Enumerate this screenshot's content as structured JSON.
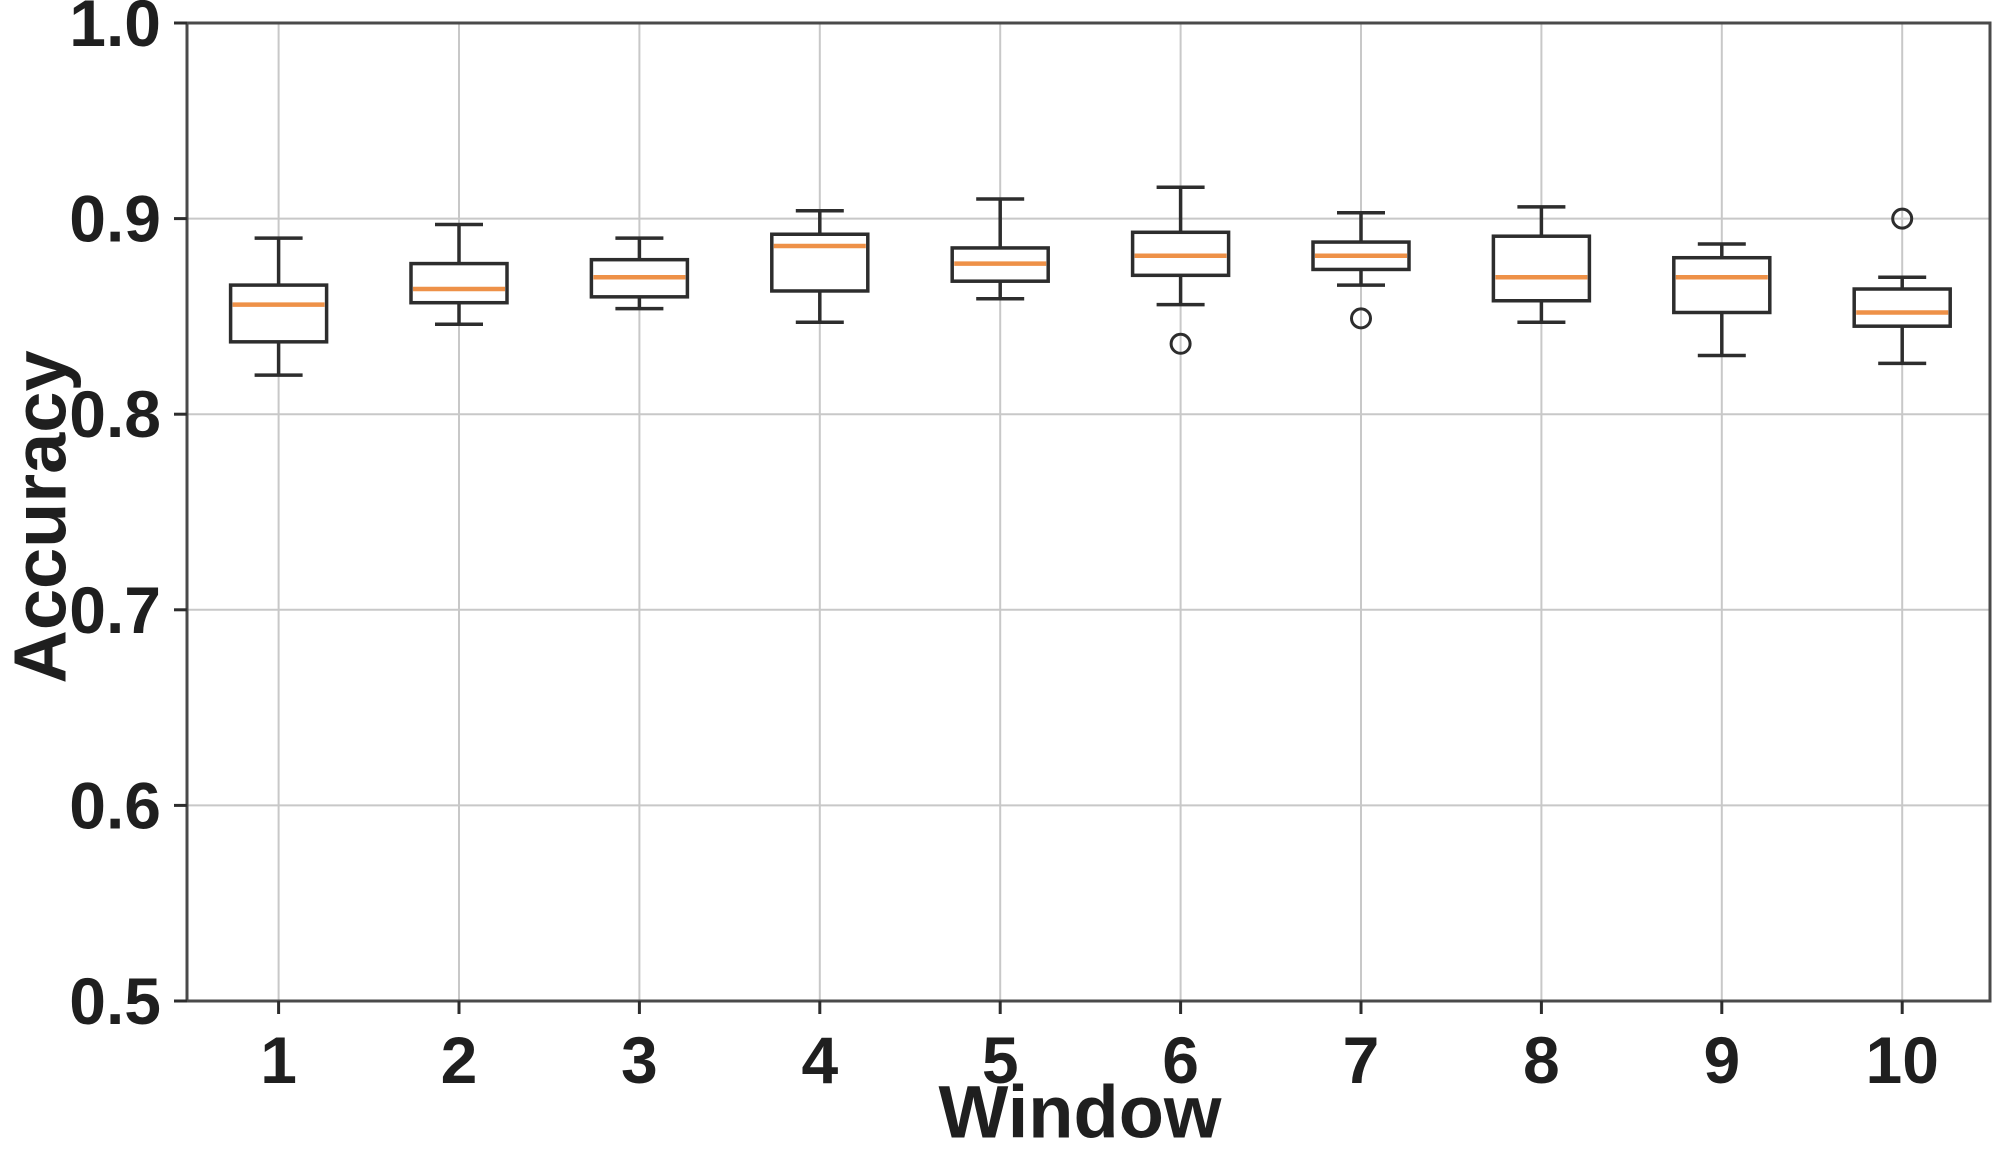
{
  "chart_data": {
    "type": "boxplot",
    "title": "",
    "xlabel": "Window",
    "ylabel": "Accuracy",
    "x_categories": [
      "1",
      "2",
      "3",
      "4",
      "5",
      "6",
      "7",
      "8",
      "9",
      "10"
    ],
    "y_ticks": [
      "0.5",
      "0.6",
      "0.7",
      "0.8",
      "0.9",
      "1.0"
    ],
    "ylim": [
      0.5,
      1.0
    ],
    "grid": true,
    "legend": "none",
    "colors": {
      "median": "#ee9148",
      "box": "#2d2d2d",
      "tick": "#2d2d2d",
      "grid": "#c8c8c8",
      "spine": "#4a4a4a",
      "text": "#1f1f1f",
      "background": "#ffffff"
    },
    "boxes": [
      {
        "window": "1",
        "whislo": 0.82,
        "q1": 0.837,
        "med": 0.856,
        "q3": 0.866,
        "whishi": 0.89,
        "outliers": []
      },
      {
        "window": "2",
        "whislo": 0.846,
        "q1": 0.857,
        "med": 0.864,
        "q3": 0.877,
        "whishi": 0.897,
        "outliers": []
      },
      {
        "window": "3",
        "whislo": 0.854,
        "q1": 0.86,
        "med": 0.87,
        "q3": 0.879,
        "whishi": 0.89,
        "outliers": []
      },
      {
        "window": "4",
        "whislo": 0.847,
        "q1": 0.863,
        "med": 0.886,
        "q3": 0.892,
        "whishi": 0.904,
        "outliers": []
      },
      {
        "window": "5",
        "whislo": 0.859,
        "q1": 0.868,
        "med": 0.877,
        "q3": 0.885,
        "whishi": 0.91,
        "outliers": []
      },
      {
        "window": "6",
        "whislo": 0.856,
        "q1": 0.871,
        "med": 0.881,
        "q3": 0.893,
        "whishi": 0.916,
        "outliers": [
          0.836
        ]
      },
      {
        "window": "7",
        "whislo": 0.866,
        "q1": 0.874,
        "med": 0.881,
        "q3": 0.888,
        "whishi": 0.903,
        "outliers": [
          0.849
        ]
      },
      {
        "window": "8",
        "whislo": 0.847,
        "q1": 0.858,
        "med": 0.87,
        "q3": 0.891,
        "whishi": 0.906,
        "outliers": []
      },
      {
        "window": "9",
        "whislo": 0.83,
        "q1": 0.852,
        "med": 0.87,
        "q3": 0.88,
        "whishi": 0.887,
        "outliers": []
      },
      {
        "window": "10",
        "whislo": 0.826,
        "q1": 0.845,
        "med": 0.852,
        "q3": 0.864,
        "whishi": 0.87,
        "outliers": [
          0.9
        ]
      }
    ]
  }
}
